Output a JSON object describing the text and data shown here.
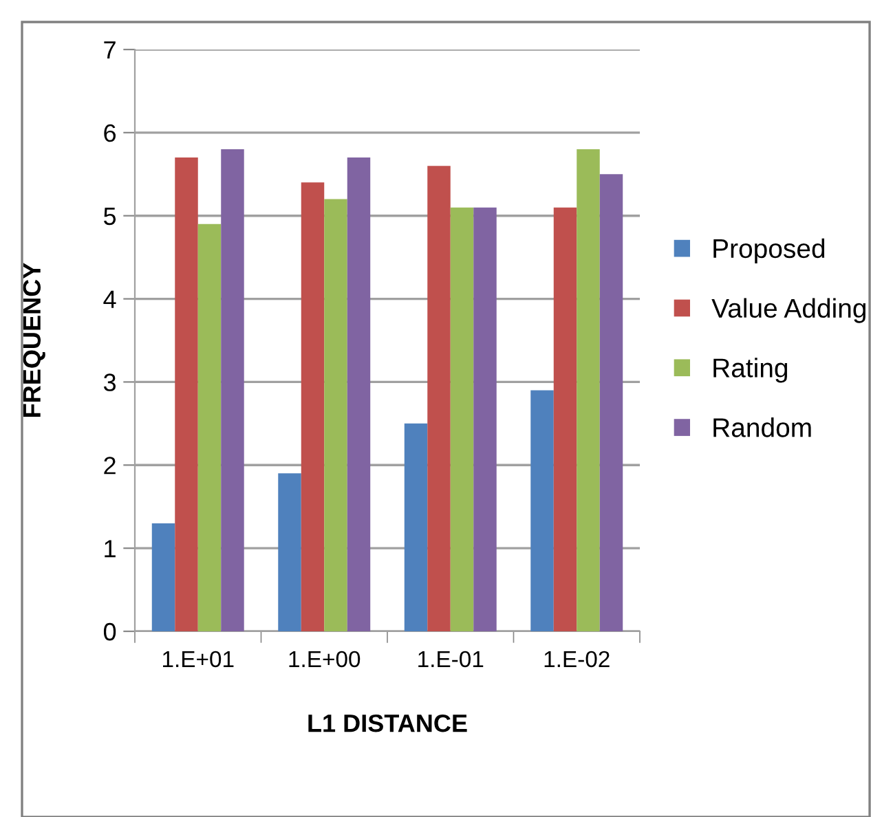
{
  "chart_data": {
    "type": "bar",
    "xlabel": "L1 DISTANCE",
    "ylabel": "FREQUENCY",
    "categories": [
      "1.E+01",
      "1.E+00",
      "1.E-01",
      "1.E-02"
    ],
    "series": [
      {
        "name": "Proposed",
        "color": "#4f81bd",
        "values": [
          1.3,
          1.9,
          2.5,
          2.9
        ]
      },
      {
        "name": "Value Adding",
        "color": "#c0504d",
        "values": [
          5.7,
          5.4,
          5.6,
          5.1
        ]
      },
      {
        "name": "Rating",
        "color": "#9bbb59",
        "values": [
          4.9,
          5.2,
          5.1,
          5.8
        ]
      },
      {
        "name": "Random",
        "color": "#8064a2",
        "values": [
          5.8,
          5.7,
          5.1,
          5.5
        ]
      }
    ],
    "ylim": [
      0,
      7
    ],
    "yticks": [
      0,
      1,
      2,
      3,
      4,
      5,
      6,
      7
    ],
    "grid": "y",
    "legend": "right"
  }
}
